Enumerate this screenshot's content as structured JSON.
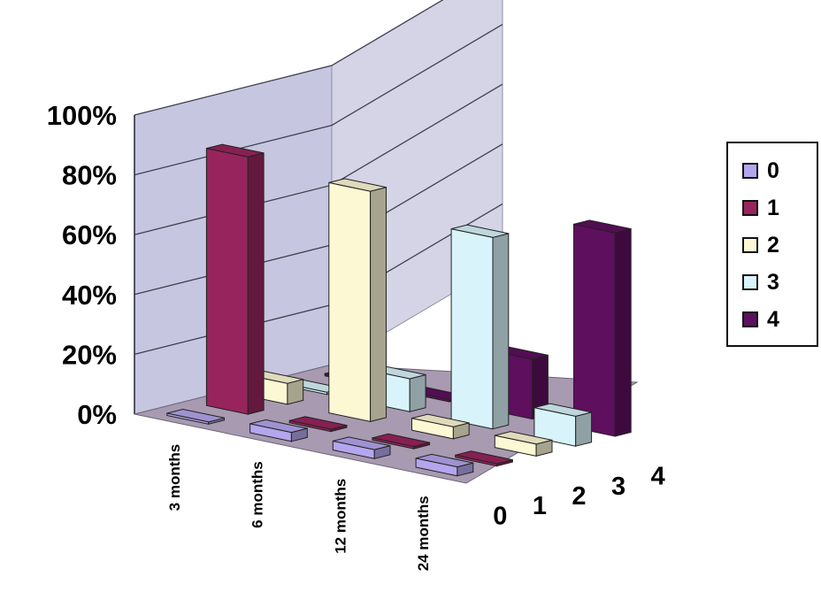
{
  "chart_data": {
    "type": "bar",
    "subtype": "3d-column",
    "categories": [
      "3 months",
      "6 months",
      "12 months",
      "24 months"
    ],
    "depth_axis_ticks": [
      "0",
      "1",
      "2",
      "3",
      "4"
    ],
    "y_ticks": [
      "0%",
      "20%",
      "40%",
      "60%",
      "80%",
      "100%"
    ],
    "ylim": [
      0,
      100
    ],
    "grid": true,
    "legend_position": "right",
    "series": [
      {
        "name": "0",
        "color": "#b4a6ee",
        "values": [
          0,
          3,
          3,
          3
        ]
      },
      {
        "name": "1",
        "color": "#98245e",
        "values": [
          86,
          0,
          0,
          0
        ]
      },
      {
        "name": "2",
        "color": "#fcf8d4",
        "values": [
          7,
          77,
          4,
          4
        ]
      },
      {
        "name": "3",
        "color": "#d8f4fa",
        "values": [
          0,
          11,
          64,
          10
        ]
      },
      {
        "name": "4",
        "color": "#5e0f5e",
        "values": [
          0,
          0,
          20,
          68
        ]
      }
    ]
  }
}
